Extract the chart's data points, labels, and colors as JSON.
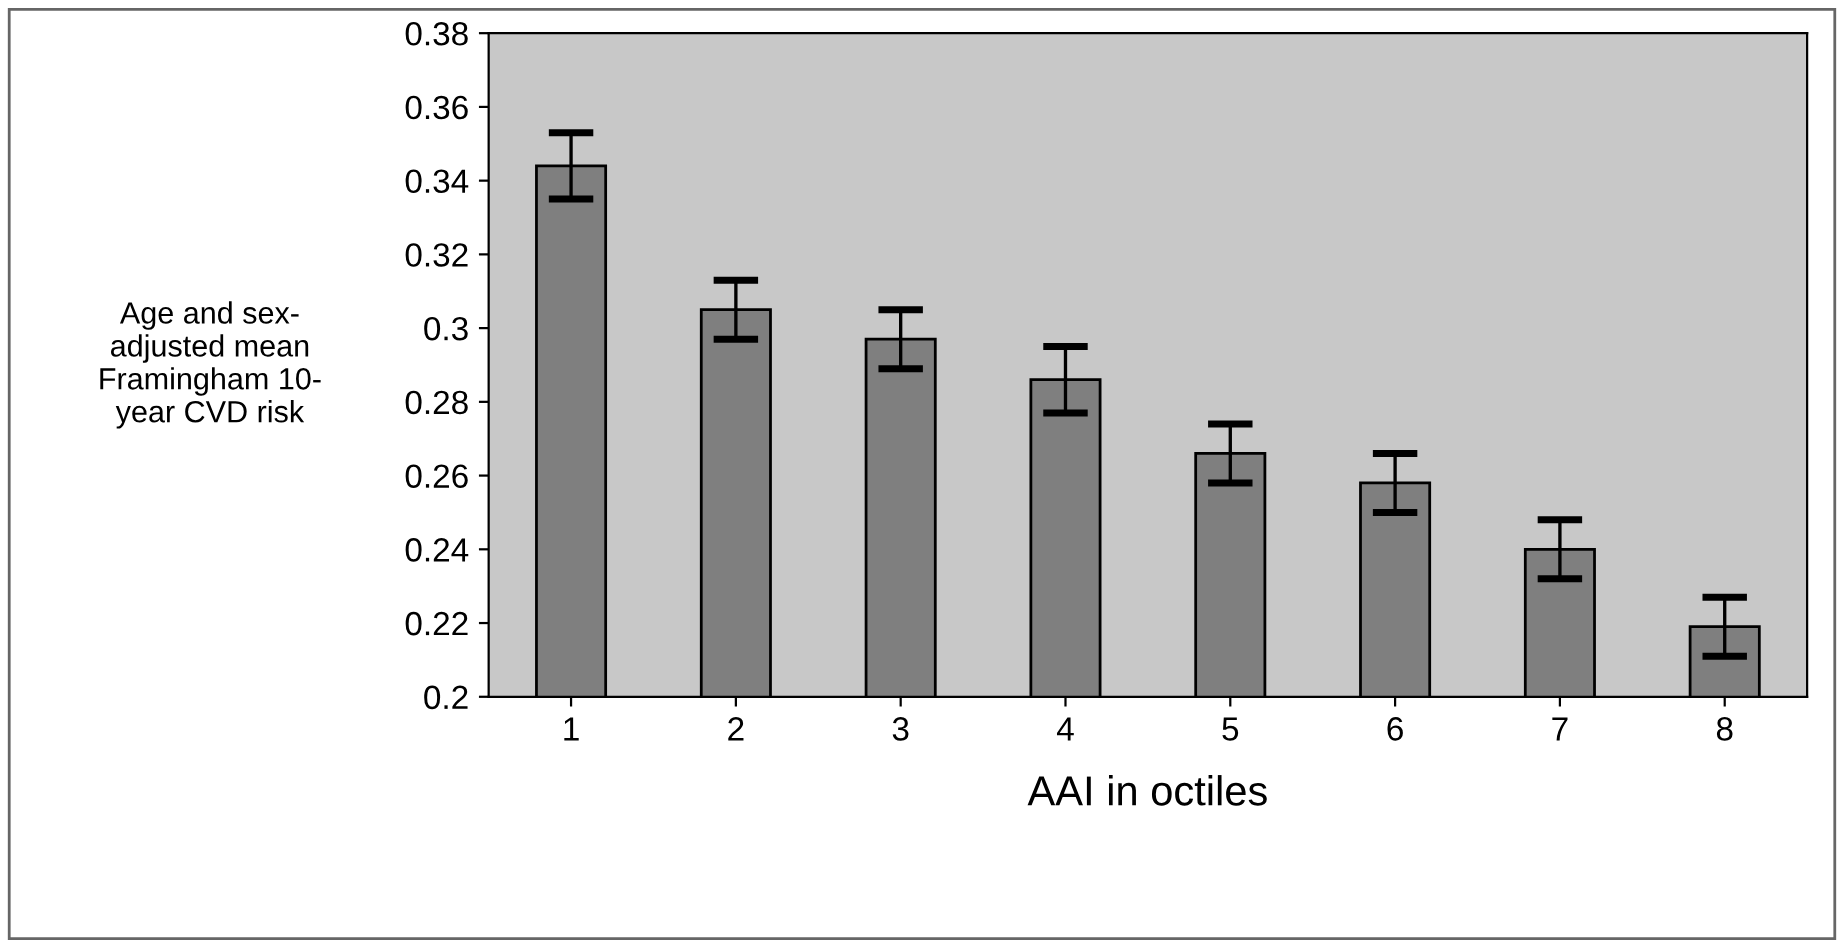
{
  "chart_data": {
    "type": "bar",
    "xlabel": "AAI in octiles",
    "ylabel": "Age and sex-\nadjusted mean\nFramingham 10-\nyear CVD risk",
    "categories": [
      "1",
      "2",
      "3",
      "4",
      "5",
      "6",
      "7",
      "8"
    ],
    "values": [
      0.344,
      0.305,
      0.297,
      0.286,
      0.266,
      0.258,
      0.24,
      0.219
    ],
    "errors": [
      0.009,
      0.008,
      0.008,
      0.009,
      0.008,
      0.008,
      0.008,
      0.008
    ],
    "color": "#7f7f7f",
    "ylim": [
      0.2,
      0.38
    ],
    "yticks": [
      0.2,
      0.22,
      0.24,
      0.26,
      0.28,
      {
        "value": 0.3,
        "label": "0.3"
      },
      0.32,
      0.34,
      0.36,
      0.38
    ],
    "grid": false
  }
}
